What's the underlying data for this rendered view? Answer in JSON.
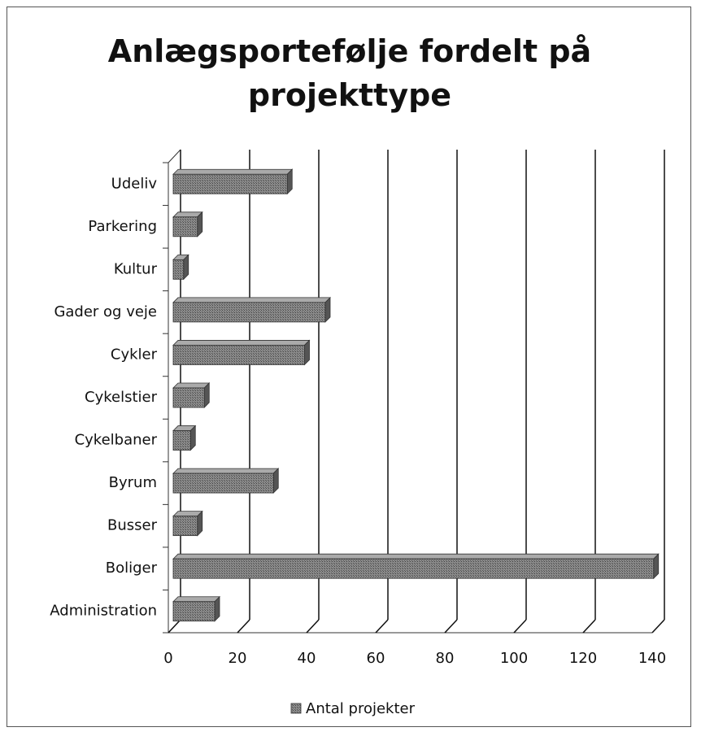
{
  "chart_data": {
    "type": "bar",
    "orientation": "horizontal",
    "title": "Anlægsportefølje fordelt på projekttype",
    "categories": [
      "Administration",
      "Boliger",
      "Busser",
      "Byrum",
      "Cykelbaner",
      "Cykelstier",
      "Cykler",
      "Gader og veje",
      "Kultur",
      "Parkering",
      "Udeliv"
    ],
    "series": [
      {
        "name": "Antal projekter",
        "color": "#6e6e6e",
        "values": [
          12,
          139,
          7,
          29,
          5,
          9,
          38,
          44,
          3,
          7,
          33
        ]
      }
    ],
    "xlim": [
      0,
      140
    ],
    "xticks": [
      0,
      20,
      40,
      60,
      80,
      100,
      120,
      140
    ],
    "grid": true,
    "legend": "bottom"
  }
}
